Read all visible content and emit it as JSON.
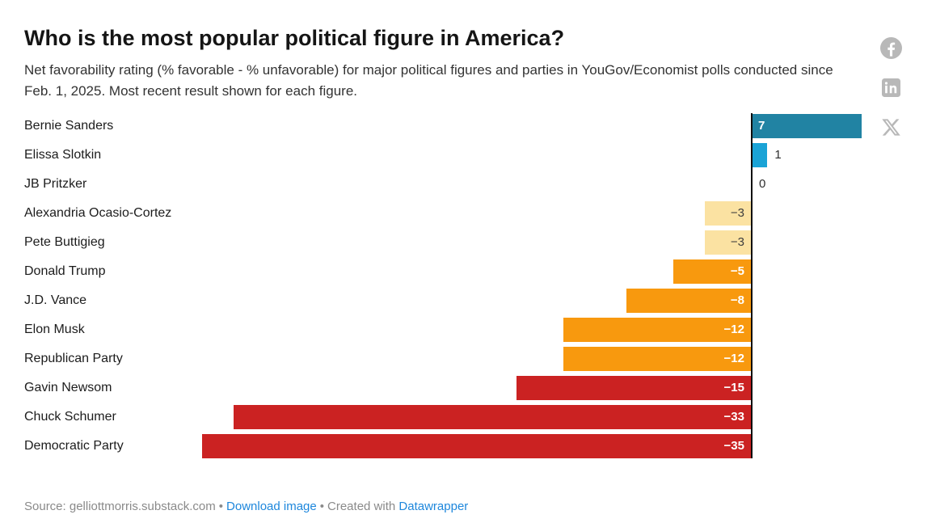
{
  "header": {
    "title": "Who is the most popular political figure in America?",
    "subtitle": "Net favorability rating (% favorable - % unfavorable) for major political figures and parties in YouGov/Economist polls conducted since Feb. 1, 2025. Most recent result shown for each figure."
  },
  "share": {
    "color": "#b8b8b8",
    "icons": [
      "facebook-icon",
      "linkedin-icon",
      "x-icon"
    ]
  },
  "chart_data": {
    "type": "bar",
    "orientation": "horizontal",
    "title": "Who is the most popular political figure in America?",
    "xlabel": "",
    "ylabel": "",
    "xlim": [
      -35,
      7
    ],
    "grid": false,
    "zero_axis_line": true,
    "categories": [
      "Bernie Sanders",
      "Elissa Slotkin",
      "JB Pritzker",
      "Alexandria Ocasio-Cortez",
      "Pete Buttigieg",
      "Donald Trump",
      "J.D. Vance",
      "Elon Musk",
      "Republican Party",
      "Gavin Newsom",
      "Chuck Schumer",
      "Democratic Party"
    ],
    "values": [
      7,
      1,
      0,
      -3,
      -3,
      -5,
      -8,
      -12,
      -12,
      -15,
      -33,
      -35
    ],
    "points": [
      {
        "label": "Bernie Sanders",
        "value": 7,
        "display": "7",
        "bar_color": "#2183a3",
        "value_color": "#ffffff",
        "placement": "inside"
      },
      {
        "label": "Elissa Slotkin",
        "value": 1,
        "display": "1",
        "bar_color": "#1aa3d6",
        "value_color": "#2e2e2e",
        "placement": "outside"
      },
      {
        "label": "JB Pritzker",
        "value": 0,
        "display": "0",
        "bar_color": null,
        "value_color": "#2e2e2e",
        "placement": "outside"
      },
      {
        "label": "Alexandria Ocasio-Cortez",
        "value": -3,
        "display": "−3",
        "bar_color": "#fbe2a2",
        "value_color": "#3d3d3d",
        "placement": "inside"
      },
      {
        "label": "Pete Buttigieg",
        "value": -3,
        "display": "−3",
        "bar_color": "#fbe2a2",
        "value_color": "#3d3d3d",
        "placement": "inside"
      },
      {
        "label": "Donald Trump",
        "value": -5,
        "display": "−5",
        "bar_color": "#f8990e",
        "value_color": "#ffffff",
        "placement": "inside"
      },
      {
        "label": "J.D. Vance",
        "value": -8,
        "display": "−8",
        "bar_color": "#f8990e",
        "value_color": "#ffffff",
        "placement": "inside"
      },
      {
        "label": "Elon Musk",
        "value": -12,
        "display": "−12",
        "bar_color": "#f8990e",
        "value_color": "#ffffff",
        "placement": "inside"
      },
      {
        "label": "Republican Party",
        "value": -12,
        "display": "−12",
        "bar_color": "#f8990e",
        "value_color": "#ffffff",
        "placement": "inside"
      },
      {
        "label": "Gavin Newsom",
        "value": -15,
        "display": "−15",
        "bar_color": "#cb2222",
        "value_color": "#ffffff",
        "placement": "inside"
      },
      {
        "label": "Chuck Schumer",
        "value": -33,
        "display": "−33",
        "bar_color": "#cb2222",
        "value_color": "#ffffff",
        "placement": "inside"
      },
      {
        "label": "Democratic Party",
        "value": -35,
        "display": "−35",
        "bar_color": "#cb2222",
        "value_color": "#ffffff",
        "placement": "inside"
      }
    ]
  },
  "footer": {
    "source_label": "Source: gelliottmorris.substack.com",
    "separator": "•",
    "download_label": "Download image",
    "created_with_label": "Created with",
    "tool_label": "Datawrapper",
    "link_color": "#1e87dc"
  }
}
